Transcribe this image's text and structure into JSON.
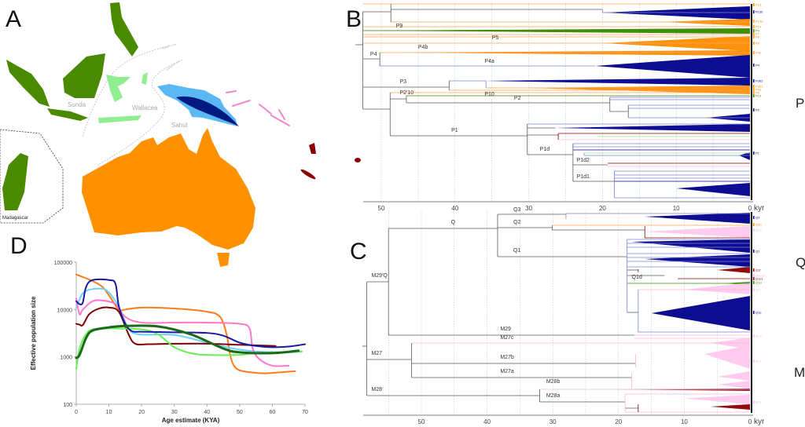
{
  "panels": {
    "a": "A",
    "b": "B",
    "c": "C",
    "d": "D"
  },
  "map": {
    "labels": {
      "sunda": "Sunda",
      "wallacea": "Wallacea",
      "sahul": "Sahul",
      "madagascar": "Madagascar",
      "wallace_line": "Wallace's Line",
      "lydekker_line": "Lydekker's Line"
    },
    "colors": {
      "sunda_madagascar": "#4a8a00",
      "wallacea": "#90ee90",
      "new_guinea": "#5bb8f5",
      "new_guinea_core": "#001a80",
      "australia": "#ff9100",
      "near_oceania": "#ee88cc",
      "remote_oceania": "#8b0000"
    }
  },
  "colors": {
    "g": "#5a5a5a",
    "b": "#7b80d8",
    "navy": "#00008b",
    "o": "#ffa050",
    "of": "#ff8c00",
    "green": "#3a8a00",
    "lg": "#90ee90",
    "pink": "#ffb6de",
    "pf": "#ffc8ee",
    "maroon": "#8b0000"
  },
  "tree_b": {
    "axis_ticks": [
      50,
      40,
      30,
      20,
      10,
      0
    ],
    "axis_unit": "kyr",
    "grid": [
      50,
      45,
      40,
      35,
      30,
      25,
      20,
      15,
      10,
      5
    ],
    "group_label": "P",
    "edges": [
      [
        53.5,
        52.5,
        10.4,
        "g"
      ],
      [
        52.5,
        48.7,
        2,
        "g"
      ],
      [
        52.5,
        0,
        0,
        "o"
      ],
      [
        48.7,
        20,
        1.4,
        "g"
      ],
      [
        20,
        0,
        2.2,
        "b"
      ],
      [
        48.7,
        0,
        4.6,
        "o"
      ],
      [
        52.5,
        0,
        5.8,
        "o"
      ],
      [
        52.5,
        0,
        6.8,
        "green"
      ],
      [
        52.5,
        0,
        7.8,
        "o"
      ],
      [
        52.5,
        0,
        8.4,
        "o"
      ],
      [
        52.5,
        0,
        10,
        "o"
      ],
      [
        52.5,
        50.2,
        14,
        "g"
      ],
      [
        50.2,
        0,
        12.4,
        "o"
      ],
      [
        50.2,
        21,
        15.8,
        "b"
      ],
      [
        52.5,
        40.8,
        21.2,
        "g"
      ],
      [
        40.8,
        35.8,
        19.6,
        "b"
      ],
      [
        35.8,
        0,
        21.4,
        "o"
      ],
      [
        40.8,
        0,
        22,
        "o"
      ],
      [
        52.5,
        48.8,
        26.8,
        "g"
      ],
      [
        48.8,
        0,
        22.6,
        "o"
      ],
      [
        48.8,
        46.6,
        24.2,
        "g"
      ],
      [
        46.6,
        0,
        23.4,
        "green"
      ],
      [
        46.6,
        19,
        25.2,
        "g"
      ],
      [
        19,
        0,
        23.8,
        "b"
      ],
      [
        19,
        0,
        24.4,
        "b"
      ],
      [
        19,
        16.5,
        27.4,
        "g"
      ],
      [
        16.5,
        0,
        25.8,
        "b"
      ],
      [
        16.5,
        0,
        26.6,
        "b"
      ],
      [
        16.5,
        0,
        29,
        "b"
      ],
      [
        48.8,
        30.2,
        33.6,
        "g"
      ],
      [
        30.2,
        0,
        30.6,
        "b"
      ],
      [
        30.2,
        26.4,
        31.6,
        "g"
      ],
      [
        30.2,
        26,
        33.4,
        "g"
      ],
      [
        26,
        0,
        33,
        "maroon"
      ],
      [
        20.7,
        0,
        33.8,
        "lg"
      ],
      [
        26,
        0,
        34.6,
        "pink"
      ],
      [
        30.2,
        24,
        38.4,
        "g"
      ],
      [
        24,
        0,
        35.6,
        "b"
      ],
      [
        24,
        0,
        36.4,
        "b"
      ],
      [
        24,
        0,
        37.2,
        "navy"
      ],
      [
        22.5,
        0,
        38,
        "lg"
      ],
      [
        22.5,
        0,
        38.6,
        "b"
      ],
      [
        24,
        19.3,
        41,
        "g"
      ],
      [
        19.3,
        0,
        40.6,
        "maroon"
      ],
      [
        19.3,
        0,
        41.4,
        "pink"
      ],
      [
        24,
        18.4,
        45.2,
        "g"
      ],
      [
        18.4,
        0,
        42.6,
        "b"
      ],
      [
        18.4,
        0,
        43.6,
        "b"
      ],
      [
        18.4,
        0,
        44.4,
        "b"
      ],
      [
        18.4,
        0,
        45.2,
        "navy"
      ],
      [
        18.4,
        0,
        49.4,
        "b"
      ]
    ],
    "verticals": [
      [
        52.5,
        2,
        26.8,
        "g"
      ],
      [
        48.7,
        0,
        4.6,
        "g"
      ],
      [
        20,
        1.4,
        2.2,
        "b"
      ],
      [
        50.2,
        12.4,
        15.8,
        "g"
      ],
      [
        40.8,
        19.6,
        22,
        "g"
      ],
      [
        35.8,
        19.6,
        21.4,
        "b"
      ],
      [
        48.8,
        22.6,
        33.6,
        "g"
      ],
      [
        46.6,
        23.4,
        25.2,
        "g"
      ],
      [
        19,
        23.8,
        27.4,
        "g"
      ],
      [
        16.5,
        25.8,
        29,
        "g"
      ],
      [
        30.2,
        30.6,
        38.4,
        "g"
      ],
      [
        26,
        33,
        34.6,
        "maroon"
      ],
      [
        24,
        35.6,
        45.2,
        "g"
      ],
      [
        22.5,
        38,
        38.6,
        "b"
      ],
      [
        18.4,
        42.6,
        49.4,
        "b"
      ]
    ],
    "triangles": [
      [
        20,
        2.2,
        0.6,
        4,
        "navy"
      ],
      [
        12,
        4.6,
        3.8,
        5.6,
        "of"
      ],
      [
        52.5,
        6.8,
        6.2,
        7.6,
        "green"
      ],
      [
        20,
        10,
        8.2,
        12,
        "of"
      ],
      [
        48,
        12.4,
        11.8,
        13.2,
        "of"
      ],
      [
        21,
        15.8,
        13,
        18.8,
        "navy"
      ],
      [
        36,
        19.6,
        18.8,
        20.8,
        "navy"
      ],
      [
        30,
        21.4,
        20.8,
        23,
        "of"
      ],
      [
        6,
        29,
        28,
        30,
        "navy"
      ],
      [
        26.4,
        31.6,
        30.6,
        32.6,
        "navy"
      ],
      [
        1.5,
        38.6,
        37.8,
        39.8,
        "navy"
      ],
      [
        10,
        47,
        45.6,
        49,
        "navy"
      ]
    ],
    "labels": [
      [
        "P9",
        48,
        6.2
      ],
      [
        "P5",
        35,
        9.2
      ],
      [
        "P4b",
        45,
        11.6
      ],
      [
        "P4",
        51.5,
        13.4
      ],
      [
        "P4a",
        36,
        15.2
      ],
      [
        "P3",
        47.5,
        20.4
      ],
      [
        "P2'10",
        47.5,
        23.2
      ],
      [
        "P10",
        36,
        23.6
      ],
      [
        "P2",
        32,
        24.6
      ],
      [
        "P1",
        40.5,
        32.8
      ],
      [
        "P1d",
        28.5,
        37.6
      ],
      [
        "P1d2",
        23.5,
        40.4
      ],
      [
        "P1d1",
        23.5,
        44.6
      ]
    ],
    "tips": [
      [
        "P13",
        0.2,
        "of"
      ],
      [
        "P13b",
        2,
        "navy"
      ],
      [
        "P13a",
        4.4,
        "of"
      ],
      [
        "P14",
        5.8,
        "of"
      ],
      [
        "P9",
        6.8,
        "green"
      ],
      [
        "P7",
        7.6,
        "of"
      ],
      [
        "P8",
        8.4,
        "of"
      ],
      [
        "P5",
        10,
        "of"
      ],
      [
        "P4b",
        12.4,
        "of"
      ],
      [
        "P4",
        15.6,
        "navy"
      ],
      [
        "P3b2",
        19.6,
        "navy"
      ],
      [
        "P3b1",
        21,
        "of"
      ],
      [
        "P3a",
        21.8,
        "of"
      ],
      [
        "P6",
        22.6,
        "of"
      ],
      [
        "P10",
        23.4,
        "green"
      ],
      [
        "P2",
        27,
        "navy"
      ],
      [
        "P1",
        38,
        "navy"
      ]
    ]
  },
  "tree_c": {
    "axis_ticks": [
      50,
      40,
      30,
      20,
      10,
      0
    ],
    "axis_unit": "kyr",
    "grid": [
      55,
      50,
      45,
      40,
      35,
      30,
      25,
      20,
      15,
      10,
      5
    ],
    "group_labels": [
      "Q",
      "M"
    ],
    "edges": [
      [
        59,
        58.3,
        34.2,
        "g"
      ],
      [
        58.3,
        55,
        17.8,
        "g"
      ],
      [
        55,
        38.4,
        4.2,
        "g"
      ],
      [
        38.4,
        28,
        0.6,
        "g"
      ],
      [
        28,
        0,
        0.4,
        "b"
      ],
      [
        38.4,
        30.1,
        4,
        "g"
      ],
      [
        30.1,
        0,
        3.4,
        "o"
      ],
      [
        30.1,
        16,
        4.6,
        "g"
      ],
      [
        16,
        0,
        6.6,
        "maroon"
      ],
      [
        38.4,
        18.7,
        11.4,
        "g"
      ],
      [
        18.7,
        0,
        7,
        "b"
      ],
      [
        18.7,
        0,
        8,
        "b"
      ],
      [
        18.7,
        0,
        9,
        "b"
      ],
      [
        18.7,
        0,
        10.6,
        "b"
      ],
      [
        18.7,
        0,
        11.6,
        "b"
      ],
      [
        18.7,
        0,
        12.6,
        "b"
      ],
      [
        18.7,
        0,
        14,
        "b"
      ],
      [
        18.7,
        17,
        14.8,
        "g"
      ],
      [
        18.7,
        13,
        16.2,
        "g"
      ],
      [
        11,
        0,
        17,
        "maroon"
      ],
      [
        18.7,
        0,
        18.2,
        "green"
      ],
      [
        17,
        0,
        19.8,
        "pink"
      ],
      [
        18.7,
        17,
        25.6,
        "g"
      ],
      [
        17,
        0,
        30.6,
        "b"
      ],
      [
        55,
        17.6,
        31.4,
        "g"
      ],
      [
        17.6,
        0,
        31.4,
        "pink"
      ],
      [
        17.6,
        0,
        32.2,
        "pink"
      ],
      [
        58.3,
        51.5,
        37.6,
        "g"
      ],
      [
        51.5,
        0,
        33.4,
        "pink"
      ],
      [
        51.5,
        17.4,
        38.6,
        "g"
      ],
      [
        51.5,
        18,
        42.2,
        "g"
      ],
      [
        58.3,
        32,
        46.8,
        "g"
      ],
      [
        32,
        0,
        45.2,
        "pink"
      ],
      [
        32,
        19,
        48.4,
        "g"
      ],
      [
        19,
        0,
        46.4,
        "pink"
      ],
      [
        19,
        17,
        50,
        "g"
      ],
      [
        19,
        0,
        51,
        "pink"
      ]
    ],
    "verticals": [
      [
        58.3,
        17.8,
        46.8,
        "g"
      ],
      [
        55,
        4.2,
        31.4,
        "g"
      ],
      [
        38.4,
        0.6,
        11.4,
        "g"
      ],
      [
        28,
        0.4,
        1.8,
        "b"
      ],
      [
        30.1,
        3.4,
        4.6,
        "g"
      ],
      [
        16,
        3.6,
        6.6,
        "maroon"
      ],
      [
        18.7,
        7,
        25.6,
        "b"
      ],
      [
        17,
        14.6,
        15.4,
        "maroon"
      ],
      [
        17,
        19.8,
        30.6,
        "b"
      ],
      [
        51.5,
        33.4,
        42.2,
        "g"
      ],
      [
        17.4,
        36.2,
        39.6,
        "pink"
      ],
      [
        18,
        41,
        45,
        "pink"
      ],
      [
        32,
        45.2,
        48.4,
        "g"
      ],
      [
        19,
        46.4,
        51,
        "pink"
      ],
      [
        17,
        49,
        51,
        "maroon"
      ]
    ],
    "triangles": [
      [
        16,
        1.2,
        0.2,
        3,
        "navy"
      ],
      [
        16,
        5,
        3.6,
        6.6,
        "pf"
      ],
      [
        18,
        7.6,
        7,
        10.4,
        "navy"
      ],
      [
        16,
        12,
        10.8,
        14,
        "navy"
      ],
      [
        5,
        14.8,
        14,
        15.6,
        "maroon"
      ],
      [
        4,
        18.2,
        17.8,
        18.6,
        "green"
      ],
      [
        10,
        19.8,
        18,
        21,
        "pf"
      ],
      [
        15,
        25.8,
        21.4,
        30.2,
        "navy"
      ],
      [
        6,
        33.4,
        32,
        35,
        "pf"
      ],
      [
        7,
        36.2,
        34,
        40,
        "pf"
      ],
      [
        5,
        42,
        40.6,
        43,
        "pf"
      ],
      [
        5,
        44,
        43,
        45,
        "pf"
      ],
      [
        22,
        45.2,
        45,
        45.6,
        "maroon"
      ],
      [
        10,
        47.5,
        46.6,
        49,
        "pf"
      ],
      [
        6,
        49.6,
        49,
        50.4,
        "maroon"
      ]
    ],
    "labels": [
      [
        "Q",
        45.5,
        3.2
      ],
      [
        "Q3",
        36,
        0
      ],
      [
        "Q2",
        36,
        3.2
      ],
      [
        "Q1",
        36,
        10.4
      ],
      [
        "M29'Q",
        57.6,
        16.8
      ],
      [
        "Q1d",
        18,
        17.2
      ],
      [
        "M29",
        38,
        30.4
      ],
      [
        "M27c",
        38,
        32.6
      ],
      [
        "M27",
        57.6,
        36.6
      ],
      [
        "M27b",
        38,
        37.6
      ],
      [
        "M27a",
        38,
        41.2
      ],
      [
        "M28",
        57.6,
        45.8
      ],
      [
        "M28b",
        31,
        43.8
      ],
      [
        "M28a",
        31,
        47.4
      ]
    ],
    "tips": [
      [
        "Q3",
        1.4,
        "navy"
      ],
      [
        "Q2b",
        3.2,
        "of"
      ],
      [
        "Q2a",
        4.6,
        "pink"
      ],
      [
        "Q1",
        10,
        "navy"
      ],
      [
        "Q1f",
        14.8,
        "maroon"
      ],
      [
        "Q1e1b",
        16.2,
        "pink"
      ],
      [
        "Q1e1",
        17,
        "maroon"
      ],
      [
        "Q1d",
        18,
        "green"
      ],
      [
        "Q1c",
        19.8,
        "pink"
      ],
      [
        "Q1e",
        25.6,
        "navy"
      ],
      [
        "M29",
        31.6,
        "pink"
      ],
      [
        "M27",
        38,
        "pink"
      ],
      [
        "M28",
        48.4,
        "pink"
      ]
    ]
  },
  "chart_data": {
    "type": "line",
    "title": "",
    "xlabel": "Age estimate (KYA)",
    "ylabel": "Effective population size",
    "xlim": [
      0,
      70
    ],
    "ylim": [
      100,
      100000
    ],
    "yscale": "log",
    "xticks": [
      0,
      10,
      20,
      30,
      40,
      50,
      60,
      70
    ],
    "yticks": [
      100,
      1000,
      10000,
      100000
    ],
    "ytick_labels": [
      "100",
      "1000",
      "10000",
      "100000"
    ],
    "grid": false,
    "series": [
      {
        "color": "#ff7a1a",
        "x": [
          0,
          5,
          8,
          10,
          13,
          15,
          20,
          30,
          40,
          44,
          46,
          47,
          48,
          50,
          55,
          58,
          62,
          67
        ],
        "y": [
          55000,
          40000,
          30000,
          20000,
          10000,
          10000,
          11000,
          10500,
          9000,
          7000,
          3000,
          1200,
          700,
          520,
          460,
          450,
          470,
          500
        ]
      },
      {
        "color": "#6fd0ff",
        "x": [
          0,
          2,
          5,
          9,
          12,
          14,
          16,
          19,
          30,
          40,
          48,
          55,
          65,
          69
        ],
        "y": [
          11000,
          22000,
          27000,
          26000,
          15000,
          8000,
          4000,
          3000,
          2900,
          2000,
          1500,
          1300,
          1250,
          1300
        ]
      },
      {
        "color": "#ff77cc",
        "x": [
          0,
          1,
          2,
          5,
          8,
          12,
          15,
          20,
          30,
          40,
          50,
          53,
          54,
          56,
          60,
          65
        ],
        "y": [
          17000,
          8000,
          10000,
          15000,
          15500,
          13000,
          7000,
          5300,
          5300,
          5300,
          5000,
          4000,
          1500,
          900,
          650,
          650
        ]
      },
      {
        "color": "#800000",
        "x": [
          0,
          1,
          2,
          4,
          7,
          10,
          13,
          16,
          18,
          22,
          30,
          40,
          50,
          61
        ],
        "y": [
          5000,
          4800,
          4700,
          8000,
          10500,
          11000,
          9000,
          3000,
          1900,
          1850,
          1900,
          1900,
          1800,
          1700
        ]
      },
      {
        "color": "#66ee55",
        "x": [
          0,
          1,
          3,
          5,
          10,
          20,
          25,
          30,
          35,
          40,
          50,
          55,
          69
        ],
        "y": [
          550,
          1500,
          3000,
          3800,
          4000,
          3800,
          3000,
          1600,
          1200,
          1100,
          1100,
          1200,
          1300
        ]
      },
      {
        "color": "#1a1aa0",
        "x": [
          0,
          1,
          2,
          3,
          5,
          10,
          12,
          13,
          15,
          17,
          20,
          30,
          40,
          45,
          50,
          55,
          60,
          65,
          70
        ],
        "y": [
          15000,
          13000,
          14000,
          30000,
          42000,
          42000,
          35000,
          12000,
          5000,
          3500,
          3400,
          3300,
          3200,
          2800,
          2000,
          1700,
          1600,
          1650,
          1850
        ]
      },
      {
        "color": "#1a6a1a",
        "x": [
          0,
          1,
          3,
          5,
          10,
          15,
          25,
          35,
          45,
          50,
          60,
          68
        ],
        "y": [
          950,
          1100,
          2500,
          3600,
          4200,
          4500,
          4400,
          3000,
          1500,
          1250,
          1200,
          1350
        ]
      }
    ]
  }
}
